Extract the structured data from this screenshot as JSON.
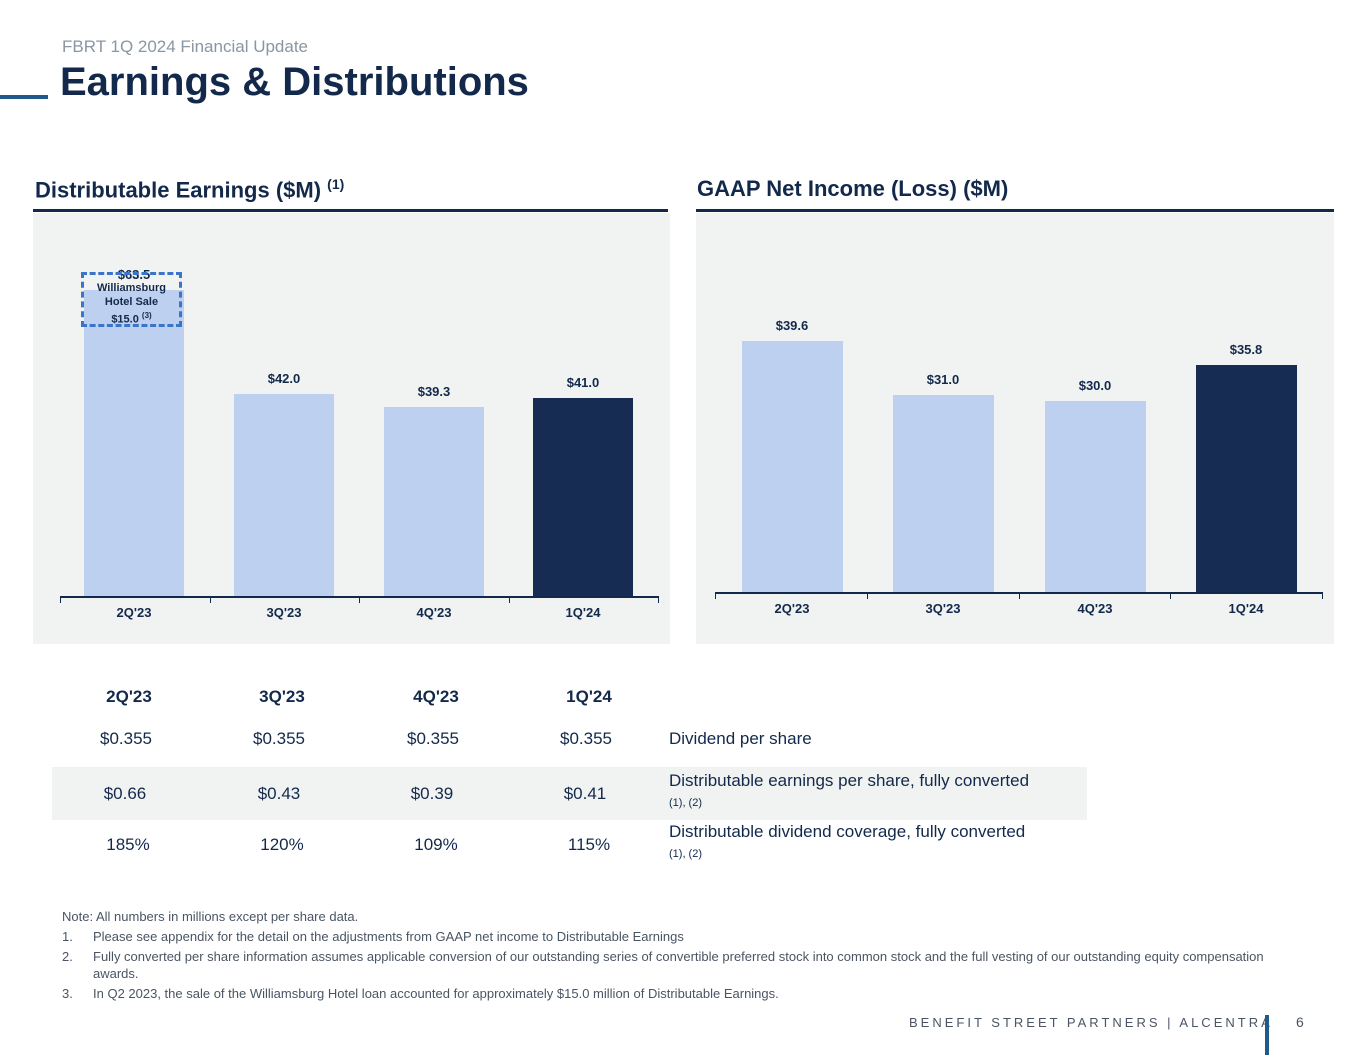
{
  "header": {
    "subtitle": "FBRT 1Q 2024 Financial Update",
    "title": "Earnings & Distributions"
  },
  "charts": {
    "left_title": "Distributable Earnings ($M)",
    "left_title_note": "(1)",
    "right_title": "GAAP Net Income (Loss) ($M)",
    "callout": {
      "line1": "Williamsburg",
      "line2": "Hotel Sale",
      "line3": "$15.0",
      "note": "(3)"
    }
  },
  "chart_data": [
    {
      "type": "bar",
      "title": "Distributable Earnings ($M)",
      "categories": [
        "2Q'23",
        "3Q'23",
        "4Q'23",
        "1Q'24"
      ],
      "values": [
        63.5,
        42.0,
        39.3,
        41.0
      ],
      "value_labels": [
        "$63.5",
        "$42.0",
        "$39.3",
        "$41.0"
      ],
      "highlighted_category": "1Q'24",
      "grid": false
    },
    {
      "type": "bar",
      "title": "GAAP Net Income (Loss) ($M)",
      "categories": [
        "2Q'23",
        "3Q'23",
        "4Q'23",
        "1Q'24"
      ],
      "values": [
        39.6,
        31.0,
        30.0,
        35.8
      ],
      "value_labels": [
        "$39.6",
        "$31.0",
        "$30.0",
        "$35.8"
      ],
      "highlighted_category": "1Q'24",
      "grid": false
    }
  ],
  "table": {
    "headers": [
      "2Q'23",
      "3Q'23",
      "4Q'23",
      "1Q'24"
    ],
    "rows": [
      {
        "values": [
          "$0.355",
          "$0.355",
          "$0.355",
          "$0.355"
        ],
        "label": "Dividend per share",
        "note": ""
      },
      {
        "values": [
          "$0.66",
          "$0.43",
          "$0.39",
          "$0.41"
        ],
        "label": "Distributable earnings per share, fully converted",
        "note": "(1), (2)"
      },
      {
        "values": [
          "185%",
          "120%",
          "109%",
          "115%"
        ],
        "label": "Distributable dividend coverage, fully converted",
        "note": "(1), (2)"
      }
    ]
  },
  "notes": {
    "heading": "Note: All numbers in millions except per share data.",
    "items": [
      {
        "num": "1.",
        "text": "Please see appendix for the detail on the adjustments from GAAP net income to Distributable Earnings"
      },
      {
        "num": "2.",
        "text": "Fully converted per share information assumes applicable conversion of our outstanding series of convertible preferred stock into common stock and the full vesting of our outstanding equity compensation awards."
      },
      {
        "num": "3.",
        "text": "In Q2 2023, the sale of the Williamsburg Hotel loan accounted for approximately $15.0 million of Distributable Earnings."
      }
    ]
  },
  "footer": {
    "brand": "BENEFIT STREET PARTNERS | ALCENTRA",
    "page_number": "6"
  },
  "colors": {
    "navy": "#13294b",
    "bar_light": "#bdd0ef",
    "bar_dark": "#162c52",
    "panel_bg": "#f1f2f2",
    "callout_border": "#3b75c9"
  }
}
